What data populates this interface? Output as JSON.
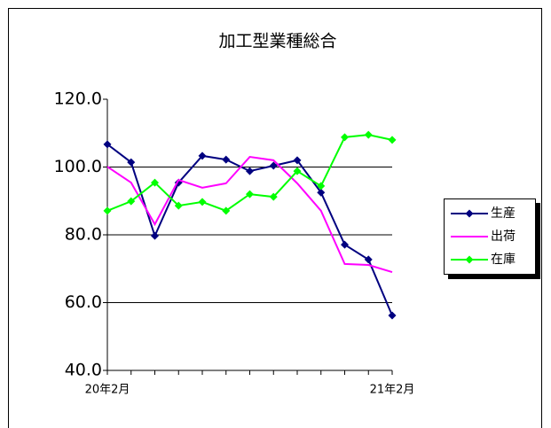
{
  "chart_data": {
    "type": "line",
    "title": "加工型業種総合",
    "categories": [
      "20年2月",
      null,
      null,
      null,
      null,
      null,
      null,
      null,
      null,
      null,
      null,
      null,
      "21年2月"
    ],
    "series": [
      {
        "name": "生産",
        "color": "#000080",
        "marker": "diamond",
        "values": [
          106.7,
          101.4,
          79.7,
          95.4,
          103.3,
          102.2,
          98.8,
          100.4,
          102.0,
          92.5,
          77.1,
          72.7,
          56.2
        ]
      },
      {
        "name": "出荷",
        "color": "#ff00ff",
        "marker": "none",
        "values": [
          100.1,
          95.4,
          83.1,
          96.2,
          93.9,
          95.2,
          103.0,
          102.0,
          95.2,
          87.1,
          71.4,
          71.1,
          69.0
        ]
      },
      {
        "name": "在庫",
        "color": "#00ff00",
        "marker": "diamond",
        "values": [
          87.1,
          89.9,
          95.4,
          88.6,
          89.7,
          87.1,
          92.0,
          91.2,
          98.8,
          94.4,
          108.8,
          109.5,
          108.0
        ]
      }
    ],
    "ylim": [
      40,
      120
    ],
    "yticks": [
      {
        "value": 40,
        "label": "40.0"
      },
      {
        "value": 60,
        "label": "60.0"
      },
      {
        "value": 80,
        "label": "80.0"
      },
      {
        "value": 100,
        "label": "100.0"
      },
      {
        "value": 120,
        "label": "120.0"
      }
    ],
    "grid": true,
    "legend": "right"
  }
}
